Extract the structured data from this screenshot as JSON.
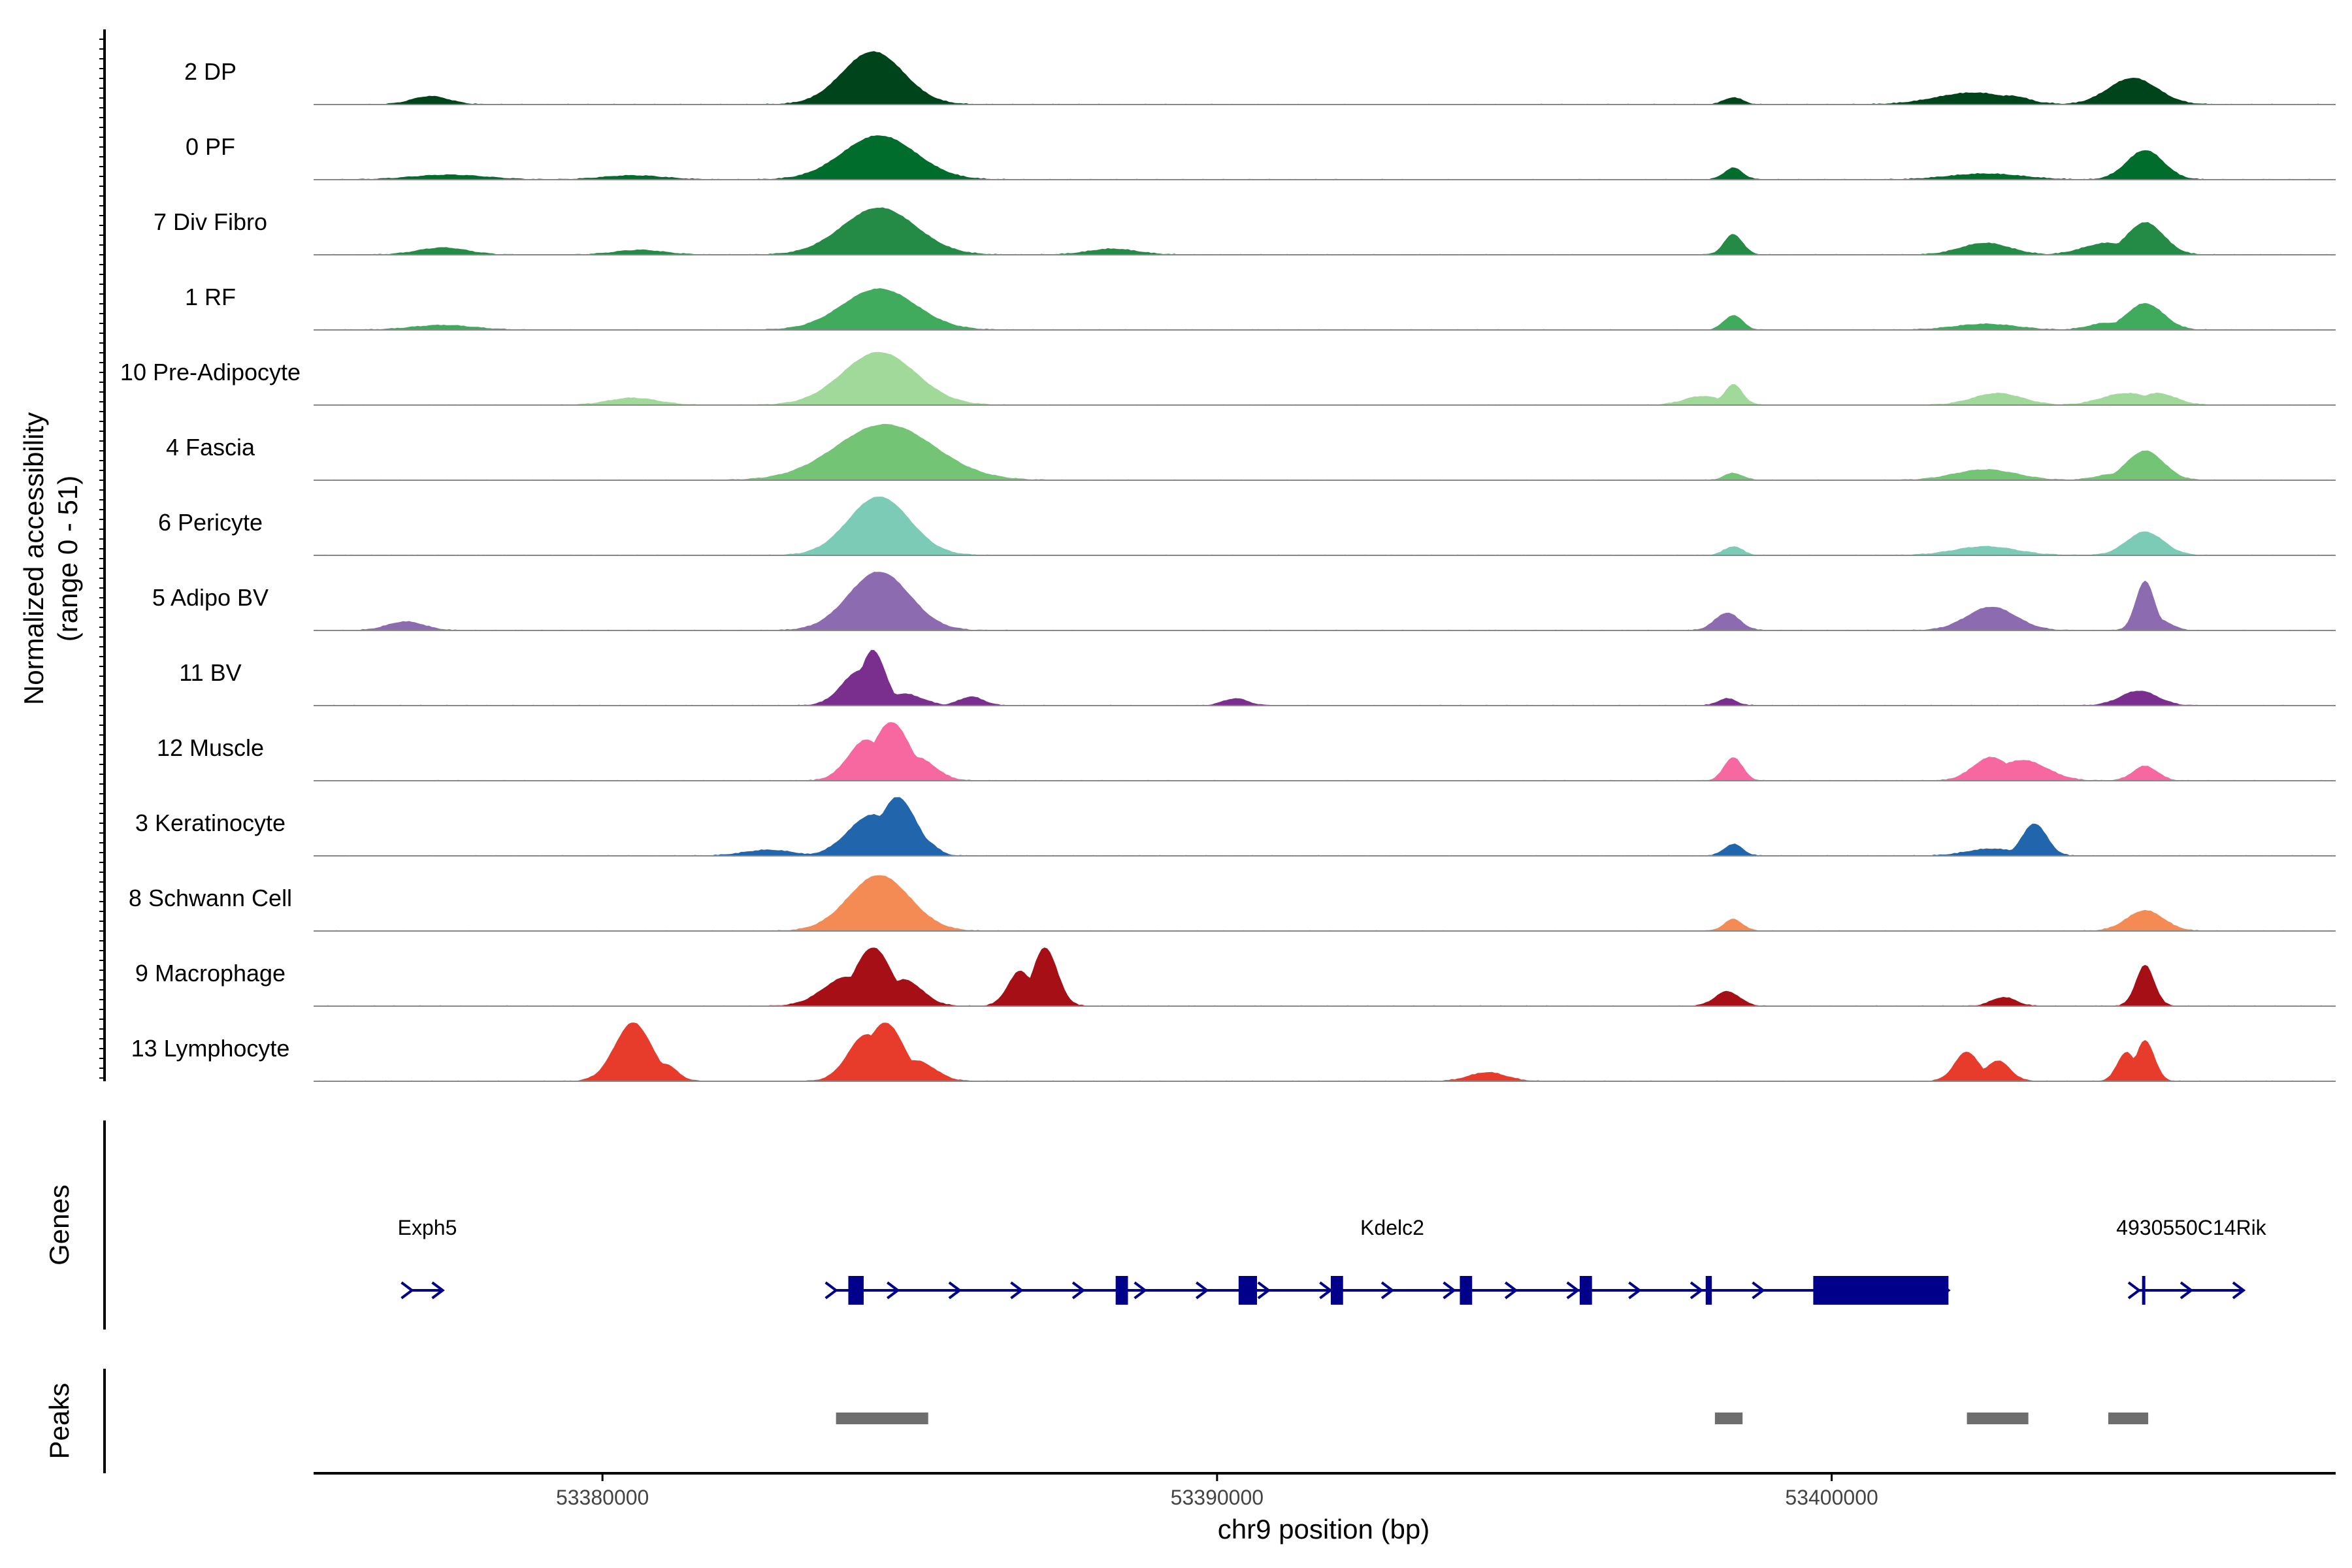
{
  "chart_data": {
    "type": "area",
    "chromosome": "chr9",
    "xlabel": "chr9 position (bp)",
    "ylabel_line1": "Normalized accessibility",
    "ylabel_line2": "(range 0 - 51)",
    "y_range": [
      0,
      51
    ],
    "x_range": [
      53375300,
      53408200
    ],
    "x_ticks": [
      53380000,
      53390000,
      53400000
    ],
    "x_tick_labels": [
      "53380000",
      "53390000",
      "53400000"
    ],
    "track_labels": {
      "genes": "Genes",
      "peaks": "Peaks"
    },
    "series": [
      {
        "name": "2 DP",
        "color": "#00441b",
        "y_max": 1.0,
        "peaks": [
          [
            53377200,
            300,
            0.14
          ],
          [
            53377500,
            200,
            0.06
          ],
          [
            53384400,
            500,
            0.9
          ],
          [
            53384700,
            200,
            0.55
          ],
          [
            53385100,
            200,
            0.18
          ],
          [
            53398400,
            150,
            0.12
          ],
          [
            53402300,
            600,
            0.2
          ],
          [
            53402900,
            300,
            0.15
          ],
          [
            53404900,
            400,
            0.45
          ],
          [
            53405200,
            200,
            0.2
          ]
        ]
      },
      {
        "name": "0 PF",
        "color": "#006d2c",
        "y_max": 0.75,
        "peaks": [
          [
            53377500,
            600,
            0.08
          ],
          [
            53380500,
            500,
            0.07
          ],
          [
            53384500,
            600,
            0.75
          ],
          [
            53385000,
            200,
            0.3
          ],
          [
            53398400,
            150,
            0.2
          ],
          [
            53402500,
            600,
            0.1
          ],
          [
            53405100,
            300,
            0.5
          ]
        ]
      },
      {
        "name": "7 Div Fibro",
        "color": "#238b45",
        "y_max": 0.8,
        "peaks": [
          [
            53377400,
            400,
            0.12
          ],
          [
            53380600,
            400,
            0.08
          ],
          [
            53384500,
            600,
            0.8
          ],
          [
            53385100,
            200,
            0.35
          ],
          [
            53388300,
            400,
            0.1
          ],
          [
            53398400,
            150,
            0.35
          ],
          [
            53402500,
            400,
            0.2
          ],
          [
            53404500,
            400,
            0.2
          ],
          [
            53405100,
            300,
            0.55
          ]
        ]
      },
      {
        "name": "1 RF",
        "color": "#41ab5d",
        "y_max": 0.7,
        "peaks": [
          [
            53377400,
            500,
            0.08
          ],
          [
            53384500,
            600,
            0.7
          ],
          [
            53385000,
            200,
            0.25
          ],
          [
            53398400,
            150,
            0.25
          ],
          [
            53402500,
            500,
            0.1
          ],
          [
            53404500,
            300,
            0.12
          ],
          [
            53405100,
            300,
            0.45
          ]
        ]
      },
      {
        "name": "10 Pre-Adipocyte",
        "color": "#a1d99b",
        "y_max": 0.9,
        "peaks": [
          [
            53380500,
            400,
            0.12
          ],
          [
            53384500,
            600,
            0.9
          ],
          [
            53385000,
            300,
            0.4
          ],
          [
            53398400,
            150,
            0.35
          ],
          [
            53397900,
            300,
            0.15
          ],
          [
            53402700,
            400,
            0.2
          ],
          [
            53404800,
            400,
            0.2
          ],
          [
            53405300,
            300,
            0.2
          ]
        ]
      },
      {
        "name": "4 Fascia",
        "color": "#74c476",
        "y_max": 0.95,
        "peaks": [
          [
            53384600,
            800,
            0.95
          ],
          [
            53398400,
            150,
            0.12
          ],
          [
            53402500,
            500,
            0.18
          ],
          [
            53404600,
            300,
            0.1
          ],
          [
            53405100,
            300,
            0.5
          ]
        ]
      },
      {
        "name": "6 Pericyte",
        "color": "#7ccbb7",
        "y_max": 1.0,
        "peaks": [
          [
            53384500,
            500,
            1.0
          ],
          [
            53384900,
            200,
            0.35
          ],
          [
            53398400,
            150,
            0.15
          ],
          [
            53402500,
            500,
            0.15
          ],
          [
            53405100,
            300,
            0.4
          ]
        ]
      },
      {
        "name": "5 Adipo BV",
        "color": "#8c6bb1",
        "y_max": 1.0,
        "peaks": [
          [
            53376800,
            300,
            0.15
          ],
          [
            53384500,
            500,
            1.0
          ],
          [
            53385000,
            250,
            0.3
          ],
          [
            53398300,
            200,
            0.3
          ],
          [
            53402600,
            400,
            0.4
          ],
          [
            53405100,
            150,
            0.85
          ],
          [
            53405300,
            200,
            0.2
          ]
        ]
      },
      {
        "name": "11 BV",
        "color": "#7a2e8e",
        "y_max": 0.95,
        "peaks": [
          [
            53384200,
            300,
            0.6
          ],
          [
            53384400,
            200,
            0.95
          ],
          [
            53384900,
            300,
            0.2
          ],
          [
            53386000,
            200,
            0.15
          ],
          [
            53390300,
            200,
            0.12
          ],
          [
            53398300,
            150,
            0.12
          ],
          [
            53405000,
            300,
            0.25
          ]
        ]
      },
      {
        "name": "12 Muscle",
        "color": "#f768a1",
        "y_max": 1.0,
        "peaks": [
          [
            53384300,
            300,
            0.7
          ],
          [
            53384700,
            300,
            1.0
          ],
          [
            53385100,
            300,
            0.4
          ],
          [
            53398400,
            150,
            0.4
          ],
          [
            53402600,
            300,
            0.4
          ],
          [
            53403100,
            400,
            0.35
          ],
          [
            53405100,
            200,
            0.25
          ]
        ]
      },
      {
        "name": "3 Keratinocyte",
        "color": "#2165ac",
        "y_max": 1.0,
        "peaks": [
          [
            53382700,
            400,
            0.1
          ],
          [
            53384400,
            400,
            0.7
          ],
          [
            53384800,
            300,
            1.0
          ],
          [
            53385200,
            200,
            0.3
          ],
          [
            53398400,
            150,
            0.2
          ],
          [
            53402600,
            400,
            0.12
          ],
          [
            53403300,
            200,
            0.55
          ]
        ]
      },
      {
        "name": "8 Schwann Cell",
        "color": "#f48b54",
        "y_max": 0.95,
        "peaks": [
          [
            53384500,
            500,
            0.95
          ],
          [
            53385100,
            200,
            0.3
          ],
          [
            53398400,
            150,
            0.2
          ],
          [
            53405100,
            300,
            0.35
          ]
        ]
      },
      {
        "name": "9 Macrophage",
        "color": "#a50f15",
        "y_max": 1.0,
        "peaks": [
          [
            53384000,
            400,
            0.5
          ],
          [
            53384400,
            300,
            1.0
          ],
          [
            53384900,
            300,
            0.45
          ],
          [
            53386800,
            200,
            0.6
          ],
          [
            53387200,
            200,
            1.0
          ],
          [
            53398300,
            200,
            0.25
          ],
          [
            53402800,
            200,
            0.15
          ],
          [
            53405100,
            150,
            0.7
          ]
        ]
      },
      {
        "name": "13 Lymphocyte",
        "color": "#e73b2c",
        "y_max": 1.0,
        "peaks": [
          [
            53380500,
            300,
            1.0
          ],
          [
            53381000,
            200,
            0.3
          ],
          [
            53384300,
            300,
            0.8
          ],
          [
            53384600,
            300,
            1.0
          ],
          [
            53385100,
            300,
            0.35
          ],
          [
            53385400,
            200,
            0.15
          ],
          [
            53394400,
            300,
            0.15
          ],
          [
            53402200,
            200,
            0.5
          ],
          [
            53402700,
            200,
            0.35
          ],
          [
            53404800,
            150,
            0.5
          ],
          [
            53405100,
            150,
            0.7
          ]
        ]
      }
    ],
    "genes": [
      {
        "name": "Exph5",
        "strand": "+",
        "start": 53376900,
        "end": 53377400,
        "exons": []
      },
      {
        "name": "Kdelc2",
        "strand": "+",
        "start": 53383800,
        "end": 53401900,
        "exons": [
          [
            53384000,
            53384250
          ],
          [
            53388350,
            53388550
          ],
          [
            53390350,
            53390650
          ],
          [
            53391850,
            53392050
          ],
          [
            53393950,
            53394150
          ],
          [
            53395900,
            53396100
          ],
          [
            53397950,
            53398050
          ],
          [
            53399700,
            53401900
          ]
        ]
      },
      {
        "name": "4930550C14Rik",
        "strand": "+",
        "start": 53405000,
        "end": 53406700,
        "exons": [
          [
            53405050,
            53405100
          ]
        ]
      }
    ],
    "peaks": [
      [
        53383800,
        53385300
      ],
      [
        53398100,
        53398550
      ],
      [
        53402200,
        53403200
      ],
      [
        53404500,
        53405150
      ]
    ]
  }
}
